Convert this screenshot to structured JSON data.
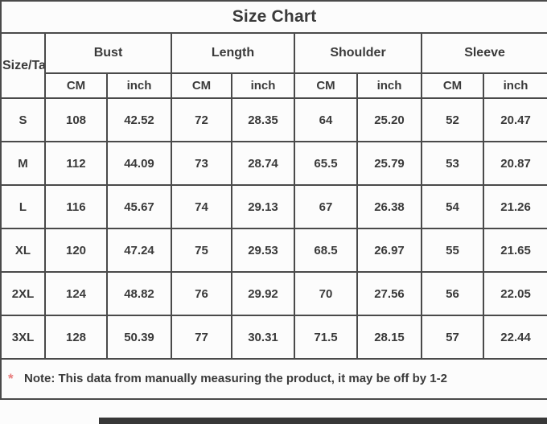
{
  "title": "Size Chart",
  "table": {
    "corner_label": "Size/Ta",
    "groups": [
      {
        "label": "Bust"
      },
      {
        "label": "Length"
      },
      {
        "label": "Shoulder"
      },
      {
        "label": "Sleeve"
      }
    ],
    "unit_headers": [
      "CM",
      "inch",
      "CM",
      "inch",
      "CM",
      "inch",
      "CM",
      "inch"
    ],
    "rows": [
      {
        "size": "S",
        "values": [
          "108",
          "42.52",
          "72",
          "28.35",
          "64",
          "25.20",
          "52",
          "20.47"
        ]
      },
      {
        "size": "M",
        "values": [
          "112",
          "44.09",
          "73",
          "28.74",
          "65.5",
          "25.79",
          "53",
          "20.87"
        ]
      },
      {
        "size": "L",
        "values": [
          "116",
          "45.67",
          "74",
          "29.13",
          "67",
          "26.38",
          "54",
          "21.26"
        ]
      },
      {
        "size": "XL",
        "values": [
          "120",
          "47.24",
          "75",
          "29.53",
          "68.5",
          "26.97",
          "55",
          "21.65"
        ]
      },
      {
        "size": "2XL",
        "values": [
          "124",
          "48.82",
          "76",
          "29.92",
          "70",
          "27.56",
          "56",
          "22.05"
        ]
      },
      {
        "size": "3XL",
        "values": [
          "128",
          "50.39",
          "77",
          "30.31",
          "71.5",
          "28.15",
          "57",
          "22.44"
        ]
      }
    ]
  },
  "note": {
    "marker": "*",
    "text": "Note: This data from manually measuring the product, it may be off by 1-2"
  },
  "colors": {
    "text": "#3a3a3a",
    "grid_border": "#4a4a4a",
    "outer_border": "#2e2e2e",
    "background": "#fcfcfc",
    "note_marker": "#e87c7c",
    "bottom_strip": "#383838"
  },
  "chart_data": {
    "type": "table",
    "title": "Size Chart",
    "columns": [
      "Size/Ta",
      "Bust CM",
      "Bust inch",
      "Length CM",
      "Length inch",
      "Shoulder CM",
      "Shoulder inch",
      "Sleeve CM",
      "Sleeve inch"
    ],
    "rows": [
      [
        "S",
        108,
        42.52,
        72,
        28.35,
        64,
        25.2,
        52,
        20.47
      ],
      [
        "M",
        112,
        44.09,
        73,
        28.74,
        65.5,
        25.79,
        53,
        20.87
      ],
      [
        "L",
        116,
        45.67,
        74,
        29.13,
        67,
        26.38,
        54,
        21.26
      ],
      [
        "XL",
        120,
        47.24,
        75,
        29.53,
        68.5,
        26.97,
        55,
        21.65
      ],
      [
        "2XL",
        124,
        48.82,
        76,
        29.92,
        70,
        27.56,
        56,
        22.05
      ],
      [
        "3XL",
        128,
        50.39,
        77,
        30.31,
        71.5,
        28.15,
        57,
        22.44
      ]
    ],
    "annotations": [
      "* Note: This data from manually measuring the product, it may be off by 1-2"
    ],
    "legend_position": "none",
    "grid": true
  }
}
